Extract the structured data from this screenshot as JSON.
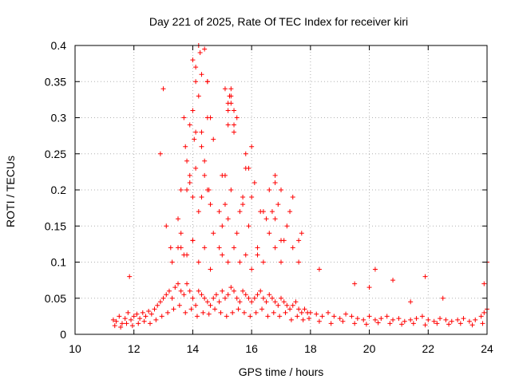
{
  "chart_data": {
    "type": "scatter",
    "title": "Day 221 of 2025, Rate Of TEC Index for receiver kiri",
    "xlabel": "GPS time / hours",
    "ylabel": "ROTI / TECUs",
    "xlim": [
      10,
      24
    ],
    "ylim": [
      0,
      0.4
    ],
    "x_ticks": [
      10,
      12,
      14,
      16,
      18,
      20,
      22,
      24
    ],
    "x_tick_labels": [
      "10",
      "12",
      "14",
      "16",
      "18",
      "20",
      "22",
      "24"
    ],
    "y_ticks": [
      0,
      0.05,
      0.1,
      0.15,
      0.2,
      0.25,
      0.3,
      0.35,
      0.4
    ],
    "y_tick_labels": [
      "0",
      "0.05",
      "0.1",
      "0.15",
      "0.2",
      "0.25",
      "0.3",
      "0.35",
      "0.4"
    ],
    "grid": true,
    "marker": "+",
    "color": "#ff0000",
    "series": [
      {
        "name": "ROTI",
        "x": [
          11.3,
          11.4,
          11.5,
          11.6,
          11.7,
          11.8,
          11.9,
          12.0,
          12.1,
          12.2,
          12.3,
          12.4,
          12.5,
          12.6,
          12.7,
          12.8,
          12.9,
          13.0,
          13.1,
          13.2,
          13.3,
          13.4,
          13.5,
          13.6,
          13.7,
          13.8,
          13.9,
          14.0,
          14.1,
          14.2,
          14.3,
          14.4,
          14.5,
          14.6,
          14.7,
          14.8,
          14.9,
          15.0,
          15.1,
          15.2,
          15.3,
          15.4,
          15.5,
          15.6,
          15.7,
          15.8,
          15.9,
          16.0,
          16.1,
          16.2,
          16.3,
          16.4,
          16.5,
          16.6,
          16.7,
          16.8,
          16.9,
          17.0,
          17.1,
          17.2,
          17.3,
          17.4,
          17.5,
          17.6,
          17.7,
          17.8,
          17.9,
          18.0,
          18.2,
          18.4,
          18.6,
          18.8,
          19.0,
          19.2,
          19.4,
          19.6,
          19.8,
          20.0,
          20.2,
          20.4,
          20.6,
          20.8,
          21.0,
          21.2,
          21.4,
          21.6,
          21.8,
          22.0,
          22.2,
          22.4,
          22.6,
          22.8,
          23.0,
          23.2,
          23.4,
          23.6,
          23.8,
          23.9,
          24.0,
          11.35,
          11.55,
          11.75,
          11.95,
          12.15,
          12.35,
          12.55,
          12.75,
          12.95,
          13.15,
          13.35,
          13.55,
          13.75,
          13.95,
          14.15,
          14.35,
          14.55,
          14.75,
          14.95,
          15.15,
          15.35,
          15.55,
          15.75,
          15.95,
          16.15,
          16.35,
          16.55,
          16.75,
          16.95,
          17.15,
          17.35,
          17.55,
          17.75,
          17.95,
          18.3,
          18.7,
          19.1,
          19.5,
          19.9,
          20.3,
          20.7,
          21.1,
          21.5,
          21.9,
          22.3,
          22.7,
          23.1,
          23.5,
          23.85,
          11.85,
          12.9,
          13.0,
          13.1,
          13.25,
          13.3,
          13.5,
          13.6,
          13.7,
          13.8,
          13.9,
          14.0,
          14.05,
          14.1,
          14.2,
          14.25,
          14.3,
          14.4,
          14.5,
          14.55,
          14.6,
          14.9,
          15.0,
          15.1,
          15.2,
          15.25,
          15.3,
          15.4,
          15.6,
          15.7,
          15.8,
          15.9,
          16.0,
          16.1,
          16.3,
          16.5,
          16.6,
          16.8,
          16.9,
          17.0,
          17.1,
          17.3,
          17.4,
          17.6,
          17.7,
          18.3,
          19.5,
          20.0,
          20.2,
          20.8,
          21.4,
          21.9,
          22.5,
          23.9,
          24.0,
          13.5,
          13.6,
          13.7,
          13.75,
          13.8,
          13.9,
          14.0,
          14.1,
          14.2,
          14.3,
          14.4,
          14.5,
          14.6,
          14.7,
          14.9,
          15.0,
          15.1,
          15.2,
          15.3,
          15.5,
          15.7,
          15.9,
          16.0,
          16.2,
          16.4,
          16.6,
          16.7,
          16.8,
          17.0,
          17.2,
          17.4,
          17.6,
          13.6,
          13.8,
          14.0,
          14.2,
          14.4,
          14.6,
          15.0,
          15.2,
          15.4,
          15.6,
          15.8,
          16.0,
          16.2,
          16.4,
          16.8,
          17.0,
          13.9,
          14.0,
          14.1,
          14.2,
          14.3,
          14.5,
          14.7,
          15.2,
          15.3,
          15.4,
          15.5,
          15.8,
          16.8,
          14.0,
          14.1,
          14.3,
          14.4,
          14.5,
          15.1,
          15.2,
          15.3,
          15.4
        ],
        "y": [
          0.02,
          0.018,
          0.025,
          0.015,
          0.022,
          0.03,
          0.02,
          0.025,
          0.028,
          0.022,
          0.03,
          0.025,
          0.032,
          0.028,
          0.035,
          0.04,
          0.045,
          0.05,
          0.055,
          0.06,
          0.05,
          0.065,
          0.07,
          0.06,
          0.055,
          0.07,
          0.06,
          0.05,
          0.04,
          0.06,
          0.055,
          0.05,
          0.045,
          0.04,
          0.05,
          0.055,
          0.045,
          0.06,
          0.05,
          0.055,
          0.065,
          0.06,
          0.05,
          0.045,
          0.06,
          0.055,
          0.05,
          0.045,
          0.05,
          0.055,
          0.06,
          0.05,
          0.045,
          0.055,
          0.05,
          0.045,
          0.04,
          0.05,
          0.045,
          0.04,
          0.035,
          0.04,
          0.045,
          0.035,
          0.03,
          0.035,
          0.03,
          0.03,
          0.028,
          0.025,
          0.03,
          0.025,
          0.022,
          0.028,
          0.025,
          0.022,
          0.02,
          0.025,
          0.02,
          0.022,
          0.025,
          0.02,
          0.022,
          0.018,
          0.02,
          0.022,
          0.025,
          0.02,
          0.018,
          0.022,
          0.02,
          0.018,
          0.02,
          0.022,
          0.018,
          0.02,
          0.025,
          0.03,
          0.035,
          0.012,
          0.01,
          0.015,
          0.012,
          0.015,
          0.018,
          0.015,
          0.02,
          0.025,
          0.03,
          0.035,
          0.04,
          0.03,
          0.035,
          0.025,
          0.03,
          0.028,
          0.035,
          0.03,
          0.025,
          0.03,
          0.035,
          0.03,
          0.025,
          0.03,
          0.035,
          0.025,
          0.03,
          0.025,
          0.03,
          0.02,
          0.025,
          0.02,
          0.022,
          0.018,
          0.015,
          0.018,
          0.015,
          0.014,
          0.016,
          0.015,
          0.014,
          0.015,
          0.013,
          0.015,
          0.014,
          0.015,
          0.013,
          0.015,
          0.08,
          0.25,
          0.34,
          0.15,
          0.12,
          0.1,
          0.12,
          0.14,
          0.11,
          0.2,
          0.22,
          0.13,
          0.27,
          0.35,
          0.4,
          0.39,
          0.28,
          0.22,
          0.35,
          0.2,
          0.3,
          0.12,
          0.15,
          0.22,
          0.31,
          0.33,
          0.34,
          0.29,
          0.17,
          0.19,
          0.25,
          0.23,
          0.26,
          0.21,
          0.17,
          0.16,
          0.2,
          0.22,
          0.18,
          0.2,
          0.13,
          0.17,
          0.19,
          0.13,
          0.14,
          0.09,
          0.07,
          0.065,
          0.09,
          0.075,
          0.045,
          0.08,
          0.05,
          0.07,
          0.1,
          0.16,
          0.2,
          0.3,
          0.26,
          0.24,
          0.21,
          0.19,
          0.23,
          0.17,
          0.19,
          0.24,
          0.2,
          0.18,
          0.14,
          0.17,
          0.22,
          0.18,
          0.16,
          0.2,
          0.14,
          0.18,
          0.15,
          0.19,
          0.12,
          0.17,
          0.14,
          0.17,
          0.16,
          0.13,
          0.15,
          0.12,
          0.1,
          0.12,
          0.11,
          0.13,
          0.1,
          0.12,
          0.09,
          0.11,
          0.1,
          0.12,
          0.1,
          0.11,
          0.09,
          0.11,
          0.1,
          0.12,
          0.1,
          0.29,
          0.31,
          0.28,
          0.33,
          0.26,
          0.3,
          0.27,
          0.29,
          0.32,
          0.28,
          0.3,
          0.23,
          0.21,
          0.38,
          0.37,
          0.36,
          0.395,
          0.35,
          0.34,
          0.32,
          0.33,
          0.31
        ]
      }
    ]
  }
}
